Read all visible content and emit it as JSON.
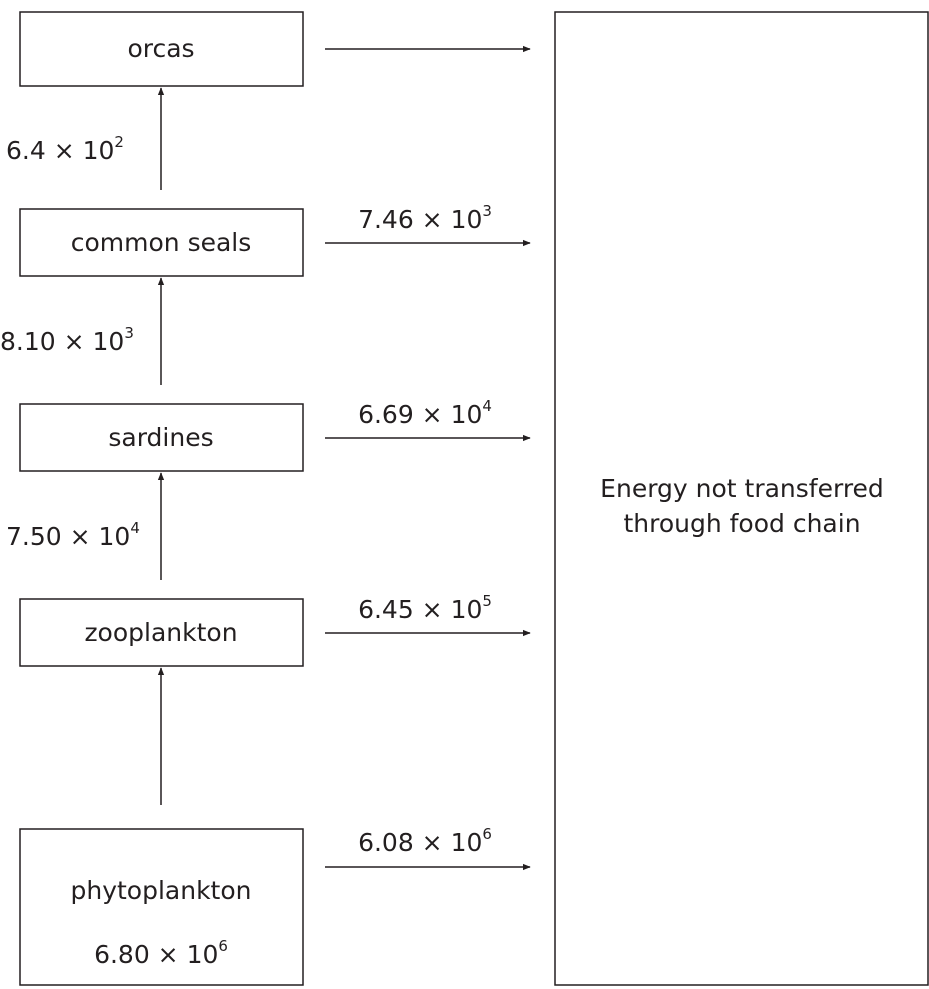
{
  "nodes": [
    {
      "label": "orcas"
    },
    {
      "label": "common seals"
    },
    {
      "label": "sardines"
    },
    {
      "label": "zooplankton"
    },
    {
      "label": "phytoplankton",
      "energy": {
        "text": "6.80 × 10",
        "exponent": "6"
      }
    }
  ],
  "transfers": [
    {
      "text": "6.4 × 10",
      "exponent": "2"
    },
    {
      "text": "8.10 × 10",
      "exponent": "3"
    },
    {
      "text": "7.50 × 10",
      "exponent": "4"
    }
  ],
  "losses": [
    {
      "text": "7.46 × 10",
      "exponent": "3"
    },
    {
      "text": "6.69 × 10",
      "exponent": "4"
    },
    {
      "text": "6.45 × 10",
      "exponent": "5"
    },
    {
      "text": "6.08 × 10",
      "exponent": "6"
    }
  ],
  "sink": {
    "lines": [
      "Energy not transferred",
      "through food chain"
    ]
  }
}
